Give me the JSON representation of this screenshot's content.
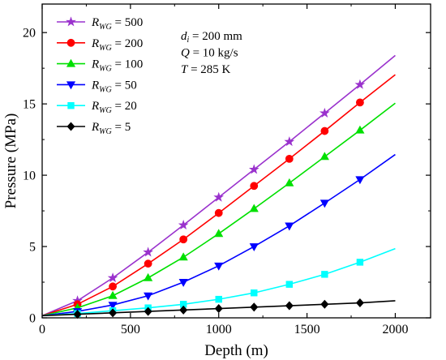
{
  "chart_data": {
    "type": "line",
    "xlabel": "Depth (m)",
    "ylabel": "Pressure (MPa)",
    "xlim": [
      0,
      2200
    ],
    "ylim": [
      0,
      22
    ],
    "x_ticks": [
      0,
      500,
      1000,
      1500,
      2000
    ],
    "y_ticks": [
      0,
      5,
      10,
      15,
      20
    ],
    "grid": false,
    "legend_position": "top-left",
    "legend_prefix": "R",
    "legend_subscript": "WG",
    "series": [
      {
        "name": "R_WG = 500",
        "label_value": "500",
        "color": "#9a32cd",
        "marker": "star",
        "x": [
          0,
          200,
          400,
          600,
          800,
          1000,
          1200,
          1400,
          1600,
          1800,
          2000
        ],
        "y": [
          0.15,
          1.2,
          2.8,
          4.6,
          6.5,
          8.45,
          10.4,
          12.35,
          14.35,
          16.35,
          18.4
        ]
      },
      {
        "name": "R_WG = 200",
        "label_value": "200",
        "color": "#ff0000",
        "marker": "circle",
        "x": [
          0,
          200,
          400,
          600,
          800,
          1000,
          1200,
          1400,
          1600,
          1800,
          2000
        ],
        "y": [
          0.15,
          0.95,
          2.2,
          3.8,
          5.5,
          7.35,
          9.25,
          11.15,
          13.1,
          15.1,
          17.05
        ]
      },
      {
        "name": "R_WG = 100",
        "label_value": "100",
        "color": "#00e000",
        "marker": "triangle-up",
        "x": [
          0,
          200,
          400,
          600,
          800,
          1000,
          1200,
          1400,
          1600,
          1800,
          2000
        ],
        "y": [
          0.15,
          0.7,
          1.55,
          2.8,
          4.25,
          5.9,
          7.65,
          9.45,
          11.3,
          13.15,
          15.05
        ]
      },
      {
        "name": "R_WG = 50",
        "label_value": "50",
        "color": "#0000ff",
        "marker": "triangle-down",
        "x": [
          0,
          200,
          400,
          600,
          800,
          1000,
          1200,
          1400,
          1600,
          1800,
          2000
        ],
        "y": [
          0.15,
          0.45,
          0.9,
          1.55,
          2.5,
          3.65,
          5.0,
          6.45,
          8.05,
          9.7,
          11.45
        ]
      },
      {
        "name": "R_WG = 20",
        "label_value": "20",
        "color": "#00ffff",
        "marker": "square",
        "x": [
          0,
          200,
          400,
          600,
          800,
          1000,
          1200,
          1400,
          1600,
          1800,
          2000
        ],
        "y": [
          0.15,
          0.3,
          0.5,
          0.7,
          0.95,
          1.3,
          1.75,
          2.35,
          3.05,
          3.9,
          4.85
        ]
      },
      {
        "name": "R_WG = 5",
        "label_value": "5",
        "color": "#000000",
        "marker": "diamond",
        "x": [
          0,
          200,
          400,
          600,
          800,
          1000,
          1200,
          1400,
          1600,
          1800,
          2000
        ],
        "y": [
          0.15,
          0.25,
          0.35,
          0.45,
          0.55,
          0.65,
          0.75,
          0.85,
          0.95,
          1.05,
          1.2
        ]
      }
    ],
    "annotations": [
      {
        "symbol": "d",
        "subscript": "i",
        "text": " = 200 mm"
      },
      {
        "symbol": "Q",
        "subscript": "",
        "text": " = 10 kg/s"
      },
      {
        "symbol": "T",
        "subscript": "",
        "text": " = 285 K"
      }
    ]
  }
}
